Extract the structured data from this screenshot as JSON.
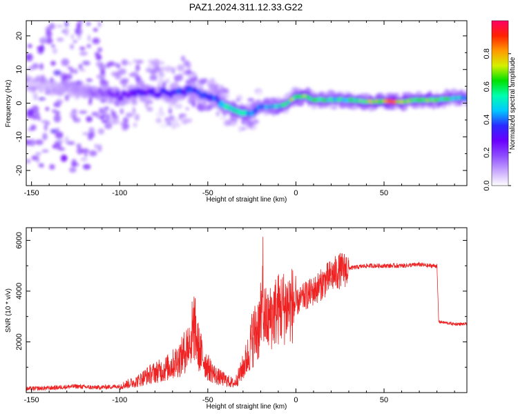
{
  "title": "PAZ1.2024.311.12.33.G22",
  "colors": {
    "snr_line": "#ee2222",
    "frame": "#000000",
    "colormap": [
      "#ffffff",
      "#c7a6ff",
      "#8e4bff",
      "#6a00ff",
      "#2a2aff",
      "#00c8ff",
      "#00ffb0",
      "#00e000",
      "#d6f000",
      "#ff9900",
      "#ff2200",
      "#ff0066"
    ]
  },
  "chart_data": [
    {
      "type": "heatmap",
      "title": "PAZ1.2024.311.12.33.G22",
      "xlabel": "Height of straight line (km)",
      "ylabel": "Frequency (Hz)",
      "xlim": [
        -153,
        97
      ],
      "ylim": [
        -24.5,
        24.5
      ],
      "x_ticks": [
        -150,
        -100,
        -50,
        0,
        50
      ],
      "y_ticks": [
        -20,
        -10,
        0,
        10,
        20
      ],
      "colorbar": {
        "label": "Normalized spectral amplitude",
        "range": [
          0,
          1
        ],
        "ticks": [
          0.0,
          0.2,
          0.4,
          0.6,
          0.8
        ]
      },
      "ridge": {
        "x": [
          -153,
          -140,
          -125,
          -110,
          -100,
          -90,
          -80,
          -70,
          -60,
          -50,
          -45,
          -40,
          -35,
          -30,
          -25,
          -20,
          -15,
          -10,
          -5,
          0,
          5,
          10,
          20,
          30,
          40,
          50,
          60,
          70,
          80,
          90,
          97
        ],
        "freq_hz": [
          6,
          5,
          4,
          3,
          2,
          3,
          3,
          3,
          4,
          2,
          1,
          -1,
          -2,
          -3,
          -3,
          -1,
          -1,
          -1,
          0,
          2,
          2,
          1,
          1,
          1,
          0.5,
          0.5,
          0.5,
          1,
          1,
          1.5,
          1.5
        ],
        "amplitude": [
          0.05,
          0.08,
          0.12,
          0.18,
          0.25,
          0.3,
          0.32,
          0.35,
          0.38,
          0.35,
          0.4,
          0.5,
          0.55,
          0.6,
          0.45,
          0.4,
          0.45,
          0.5,
          0.6,
          0.75,
          0.7,
          0.65,
          0.55,
          0.6,
          0.7,
          0.85,
          0.75,
          0.65,
          0.7,
          0.55,
          0.5
        ]
      },
      "grid": false
    },
    {
      "type": "line",
      "xlabel": "Height of straight line (km)",
      "ylabel": "SNR (10 * v/v)",
      "xlim": [
        -153,
        97
      ],
      "ylim": [
        0,
        6500
      ],
      "x_ticks": [
        -150,
        -100,
        -50,
        0,
        50
      ],
      "y_ticks": [
        2000,
        4000,
        6000
      ],
      "series": [
        {
          "x": [
            -153,
            -140,
            -125,
            -115,
            -105,
            -100,
            -95,
            -90,
            -85,
            -80,
            -75,
            -70,
            -65,
            -60,
            -58,
            -55,
            -50,
            -45,
            -40,
            -35,
            -32,
            -30,
            -27,
            -25,
            -22,
            -20,
            -18,
            -16,
            -14,
            -12,
            -10,
            -5,
            0,
            5,
            10,
            15,
            20,
            25,
            30,
            40,
            50,
            60,
            70,
            75,
            80,
            81,
            85,
            90,
            97
          ],
          "y": [
            150,
            180,
            250,
            200,
            230,
            250,
            350,
            450,
            650,
            800,
            900,
            1100,
            1400,
            2000,
            2700,
            1700,
            1000,
            650,
            500,
            350,
            700,
            1000,
            1500,
            2100,
            2500,
            2800,
            3000,
            2800,
            3000,
            3200,
            3300,
            3400,
            3500,
            3800,
            4000,
            4300,
            4600,
            4800,
            4900,
            5000,
            5000,
            5000,
            5050,
            5000,
            5000,
            2800,
            2750,
            2700,
            2700
          ]
        }
      ],
      "annotations": [
        {
          "x": -60,
          "y": 3900,
          "label": ""
        },
        {
          "x": -19,
          "y": 6500,
          "label": ""
        }
      ],
      "grid": false
    }
  ]
}
